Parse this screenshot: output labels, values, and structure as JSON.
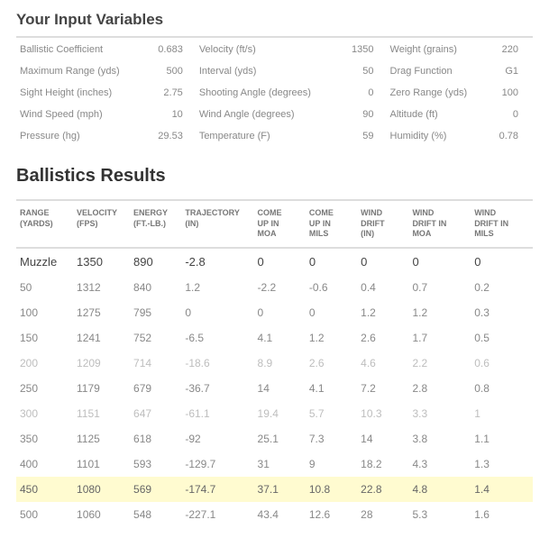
{
  "titles": {
    "inputs": "Your Input Variables",
    "results": "Ballistics Results"
  },
  "inputs": {
    "rows": [
      {
        "l1": "Ballistic Coefficient",
        "v1": "0.683",
        "l2": "Velocity (ft/s)",
        "v2": "1350",
        "l3": "Weight (grains)",
        "v3": "220"
      },
      {
        "l1": "Maximum Range (yds)",
        "v1": "500",
        "l2": "Interval (yds)",
        "v2": "50",
        "l3": "Drag Function",
        "v3": "G1"
      },
      {
        "l1": "Sight Height (inches)",
        "v1": "2.75",
        "l2": "Shooting Angle (degrees)",
        "v2": "0",
        "l3": "Zero Range (yds)",
        "v3": "100"
      },
      {
        "l1": "Wind Speed (mph)",
        "v1": "10",
        "l2": "Wind Angle (degrees)",
        "v2": "90",
        "l3": "Altitude (ft)",
        "v3": "0"
      },
      {
        "l1": "Pressure (hg)",
        "v1": "29.53",
        "l2": "Temperature (F)",
        "v2": "59",
        "l3": "Humidity (%)",
        "v3": "0.78"
      }
    ]
  },
  "results": {
    "headers": [
      "RANGE (YARDS)",
      "VELOCITY (FPS)",
      "ENERGY (FT.-LB.)",
      "TRAJECTORY (IN)",
      "COME UP IN MOA",
      "COME UP IN MILS",
      "WIND DRIFT (IN)",
      "WIND DRIFT IN MOA",
      "WIND DRIFT IN MILS"
    ],
    "header_parts": [
      [
        "RANGE",
        "(YARDS)"
      ],
      [
        "VELOCITY",
        "(FPS)"
      ],
      [
        "ENERGY",
        "(FT.-LB.)"
      ],
      [
        "TRAJECTORY",
        "(IN)"
      ],
      [
        "COME",
        "UP IN",
        "MOA"
      ],
      [
        "COME",
        "UP IN",
        "MILS"
      ],
      [
        "WIND",
        "DRIFT",
        "(IN)"
      ],
      [
        "WIND",
        "DRIFT IN",
        "MOA"
      ],
      [
        "WIND",
        "DRIFT IN",
        "MILS"
      ]
    ],
    "highlight_index": 9,
    "faint_indices": [
      4,
      6
    ],
    "rows": [
      {
        "cells": [
          "Muzzle",
          "1350",
          "890",
          "-2.8",
          "0",
          "0",
          "0",
          "0",
          "0"
        ],
        "muzzle": true
      },
      {
        "cells": [
          "50",
          "1312",
          "840",
          "1.2",
          "-2.2",
          "-0.6",
          "0.4",
          "0.7",
          "0.2"
        ]
      },
      {
        "cells": [
          "100",
          "1275",
          "795",
          "0",
          "0",
          "0",
          "1.2",
          "1.2",
          "0.3"
        ]
      },
      {
        "cells": [
          "150",
          "1241",
          "752",
          "-6.5",
          "4.1",
          "1.2",
          "2.6",
          "1.7",
          "0.5"
        ]
      },
      {
        "cells": [
          "200",
          "1209",
          "714",
          "-18.6",
          "8.9",
          "2.6",
          "4.6",
          "2.2",
          "0.6"
        ]
      },
      {
        "cells": [
          "250",
          "1179",
          "679",
          "-36.7",
          "14",
          "4.1",
          "7.2",
          "2.8",
          "0.8"
        ]
      },
      {
        "cells": [
          "300",
          "1151",
          "647",
          "-61.1",
          "19.4",
          "5.7",
          "10.3",
          "3.3",
          "1"
        ]
      },
      {
        "cells": [
          "350",
          "1125",
          "618",
          "-92",
          "25.1",
          "7.3",
          "14",
          "3.8",
          "1.1"
        ]
      },
      {
        "cells": [
          "400",
          "1101",
          "593",
          "-129.7",
          "31",
          "9",
          "18.2",
          "4.3",
          "1.3"
        ]
      },
      {
        "cells": [
          "450",
          "1080",
          "569",
          "-174.7",
          "37.1",
          "10.8",
          "22.8",
          "4.8",
          "1.4"
        ]
      },
      {
        "cells": [
          "500",
          "1060",
          "548",
          "-227.1",
          "43.4",
          "12.6",
          "28",
          "5.3",
          "1.6"
        ]
      }
    ]
  },
  "colors": {
    "highlight_bg": "#fffbd0",
    "border": "#ddd",
    "text_muted": "#888",
    "heading": "#444"
  },
  "col_widths_pct": [
    11,
    11,
    10,
    14,
    10,
    10,
    10,
    12,
    12
  ]
}
